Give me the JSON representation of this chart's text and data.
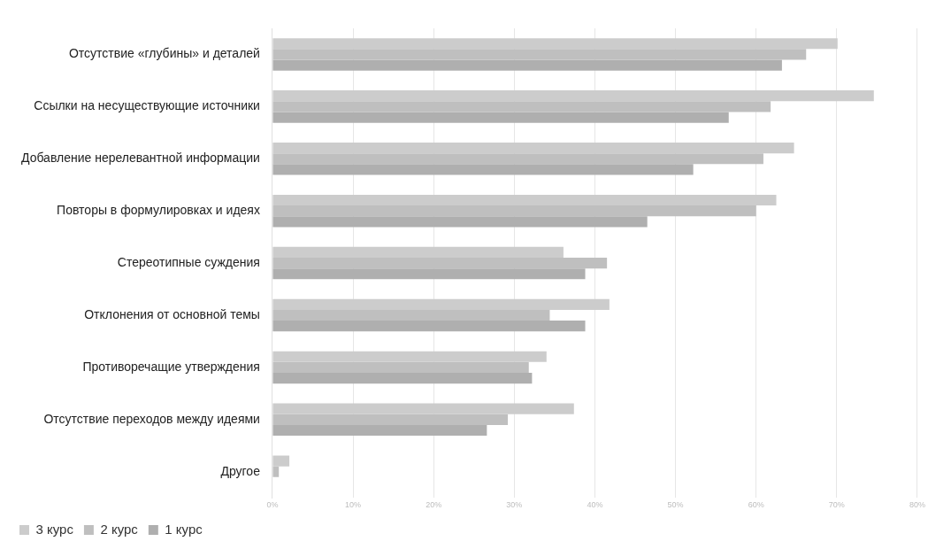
{
  "chart_data": {
    "type": "bar",
    "orientation": "horizontal",
    "categories": [
      "Отсутствие «глубины» и деталей",
      "Ссылки на несуществующие источники",
      "Добавление нерелевантной информации",
      "Повторы в формулировках и идеях",
      "Стереотипные суждения",
      "Отклонения от основной темы",
      "Противоречащие утверждения",
      "Отсутствие переходов между идеями",
      "Другое"
    ],
    "series": [
      {
        "name": "3 курс",
        "color": "#cccccc",
        "values": [
          70.1,
          74.6,
          64.7,
          62.5,
          36.1,
          41.8,
          34.0,
          37.4,
          2.1
        ]
      },
      {
        "name": "2 курс",
        "color": "#bfbfbf",
        "values": [
          66.2,
          61.8,
          60.9,
          60.0,
          41.5,
          34.4,
          31.8,
          29.2,
          0.8
        ]
      },
      {
        "name": "1 курс",
        "color": "#afafaf",
        "values": [
          63.2,
          56.6,
          52.2,
          46.5,
          38.8,
          38.8,
          32.2,
          26.6,
          0
        ]
      }
    ],
    "xlim": [
      0,
      80
    ],
    "xticks": [
      {
        "value": 0,
        "label": "0%"
      },
      {
        "value": 10,
        "label": "10%"
      },
      {
        "value": 20,
        "label": "20%"
      },
      {
        "value": 30,
        "label": "30%"
      },
      {
        "value": 40,
        "label": "40%"
      },
      {
        "value": 50,
        "label": "50%"
      },
      {
        "value": 60,
        "label": "60%"
      },
      {
        "value": 70,
        "label": "70%"
      },
      {
        "value": 80,
        "label": "80%"
      }
    ],
    "grid": "x",
    "legend": "bottom left"
  }
}
